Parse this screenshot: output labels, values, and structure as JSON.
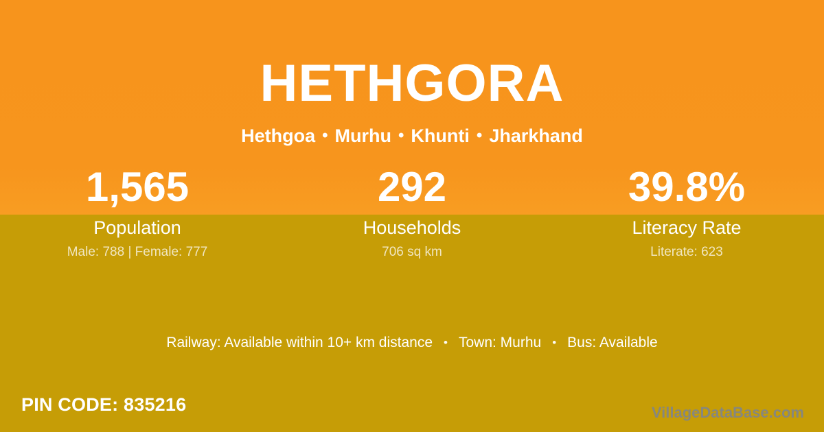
{
  "colors": {
    "top_background": "#F7951D",
    "bottom_background": "#C69D06",
    "text": "#FFFFFF",
    "watermark": "#87877D"
  },
  "header": {
    "title": "HETHGORA",
    "separator": "•",
    "breadcrumb": [
      "Hethgoa",
      "Murhu",
      "Khunti",
      "Jharkhand"
    ]
  },
  "stats": [
    {
      "value": "1,565",
      "label": "Population",
      "sublabel": "Male: 788 | Female: 777"
    },
    {
      "value": "292",
      "label": "Households",
      "sublabel": "706 sq km"
    },
    {
      "value": "39.8%",
      "label": "Literacy Rate",
      "sublabel": "Literate: 623"
    }
  ],
  "info_line": {
    "separator": "•",
    "items": [
      "Railway: Available within 10+ km distance",
      "Town: Murhu",
      "Bus: Available"
    ]
  },
  "pin": {
    "label": "PIN CODE:",
    "value": "835216"
  },
  "watermark": "VillageDataBase.com"
}
